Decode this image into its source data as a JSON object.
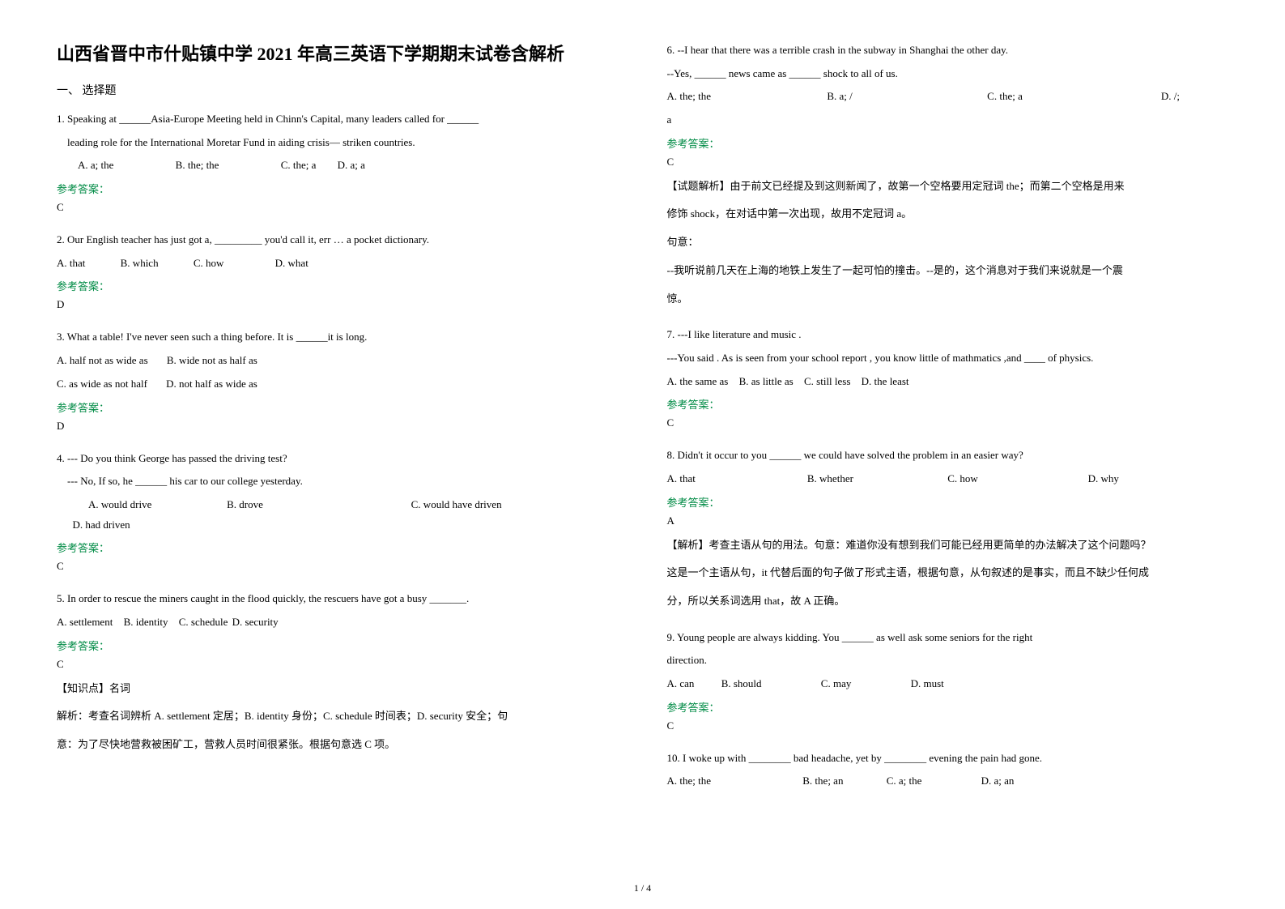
{
  "title": "山西省晋中市什贴镇中学 2021 年高三英语下学期期末试卷含解析",
  "section1": "一、 选择题",
  "q1": {
    "text1": "1. Speaking at ______Asia-Europe Meeting held in Chinn's Capital, many leaders called for ______",
    "text2": "leading role for the International Moretar Fund in aiding crisis— striken countries.",
    "optA": "A. a; the",
    "optB": "B. the; the",
    "optC": "C. the; a",
    "optD": "D. a; a",
    "ansLabel": "参考答案：",
    "ans": "C"
  },
  "q2": {
    "text": "2. Our English teacher has just got a, _________ you'd call it, err … a pocket dictionary.",
    "optA": "A. that",
    "optB": "B. which",
    "optC": "C. how",
    "optD": "D. what",
    "ansLabel": "参考答案：",
    "ans": "D"
  },
  "q3": {
    "text": "3. What a table! I've never seen such a thing before. It is ______it is long.",
    "optA": "A. half not as wide as",
    "optB": "B. wide not as half as",
    "optC": "C. as wide as not half",
    "optD": "D. not half as wide as",
    "ansLabel": "参考答案：",
    "ans": "D"
  },
  "q4": {
    "text1": "4. --- Do you think George has passed the driving test?",
    "text2": "--- No, If so, he ______ his car to our college yesterday.",
    "optA": "A. would drive",
    "optB": "B. drove",
    "optC": "C. would have driven",
    "optD": "D. had driven",
    "ansLabel": "参考答案：",
    "ans": "C"
  },
  "q5": {
    "text": "5. In order to rescue the miners caught in the flood quickly, the rescuers have got a busy _______.",
    "optA": "A. settlement",
    "optB": "B. identity",
    "optC": "C. schedule",
    "optD": "D. security",
    "ansLabel": "参考答案：",
    "ans": "C",
    "kpt": "【知识点】名词",
    "expl1": "解析：考查名词辨析    A. settlement 定居；B. identity 身份；C. schedule 时间表；D. security 安全；句",
    "expl2": "意：为了尽快地营救被困矿工，营救人员时间很紧张。根据句意选 C 项。"
  },
  "q6": {
    "text1": "6. --I hear that there was a terrible crash in the subway in Shanghai the other day.",
    "text2": "--Yes, ______ news came as ______ shock to all of us.",
    "optA": "A. the; the",
    "optB": "B. a; /",
    "optC": "C. the; a",
    "optD": "D. /;",
    "optD2": "a",
    "ansLabel": "参考答案：",
    "ans": "C",
    "expl1": "【试题解析】由于前文已经提及到这则新闻了，故第一个空格要用定冠词 the；而第二个空格是用来",
    "expl2": "修饰 shock，在对话中第一次出现，故用不定冠词 a。",
    "expl3": "句意：",
    "expl4": "--我听说前几天在上海的地铁上发生了一起可怕的撞击。--是的，这个消息对于我们来说就是一个震",
    "expl5": "惊。"
  },
  "q7": {
    "text1": "7. ---I like literature and music .",
    "text2": "---You said . As is seen from your school report , you know little of mathmatics ,and ____ of physics.",
    "optA": "A. the same  as",
    "optB": "B. as little  as",
    "optC": "C. still less",
    "optD": "D. the least",
    "ansLabel": "参考答案：",
    "ans": "C"
  },
  "q8": {
    "text": "8. Didn't it occur to you ______ we could have solved the problem in an easier way?",
    "optA": "A. that",
    "optB": "B. whether",
    "optC": "C. how",
    "optD": "D. why",
    "ansLabel": "参考答案：",
    "ans": "A",
    "expl1": "【解析】考查主语从句的用法。句意：难道你没有想到我们可能已经用更简单的办法解决了这个问题吗？",
    "expl2": "这是一个主语从句，it 代替后面的句子做了形式主语，根据句意，从句叙述的是事实，而且不缺少任何成",
    "expl3": "分，所以关系词选用 that，故 A 正确。"
  },
  "q9": {
    "text1": "9. Young people are always kidding. You ______ as well ask some seniors for the right",
    "text2": "direction.",
    "optA": "A. can",
    "optB": "B. should",
    "optC": "C. may",
    "optD": "D. must",
    "ansLabel": "参考答案：",
    "ans": "C"
  },
  "q10": {
    "text": "10. I woke up with ________ bad headache, yet by ________ evening the pain had gone.",
    "optA": "A. the; the",
    "optB": "B. the; an",
    "optC": "C. a; the",
    "optD": "D. a; an"
  },
  "pagenum": "1 / 4"
}
